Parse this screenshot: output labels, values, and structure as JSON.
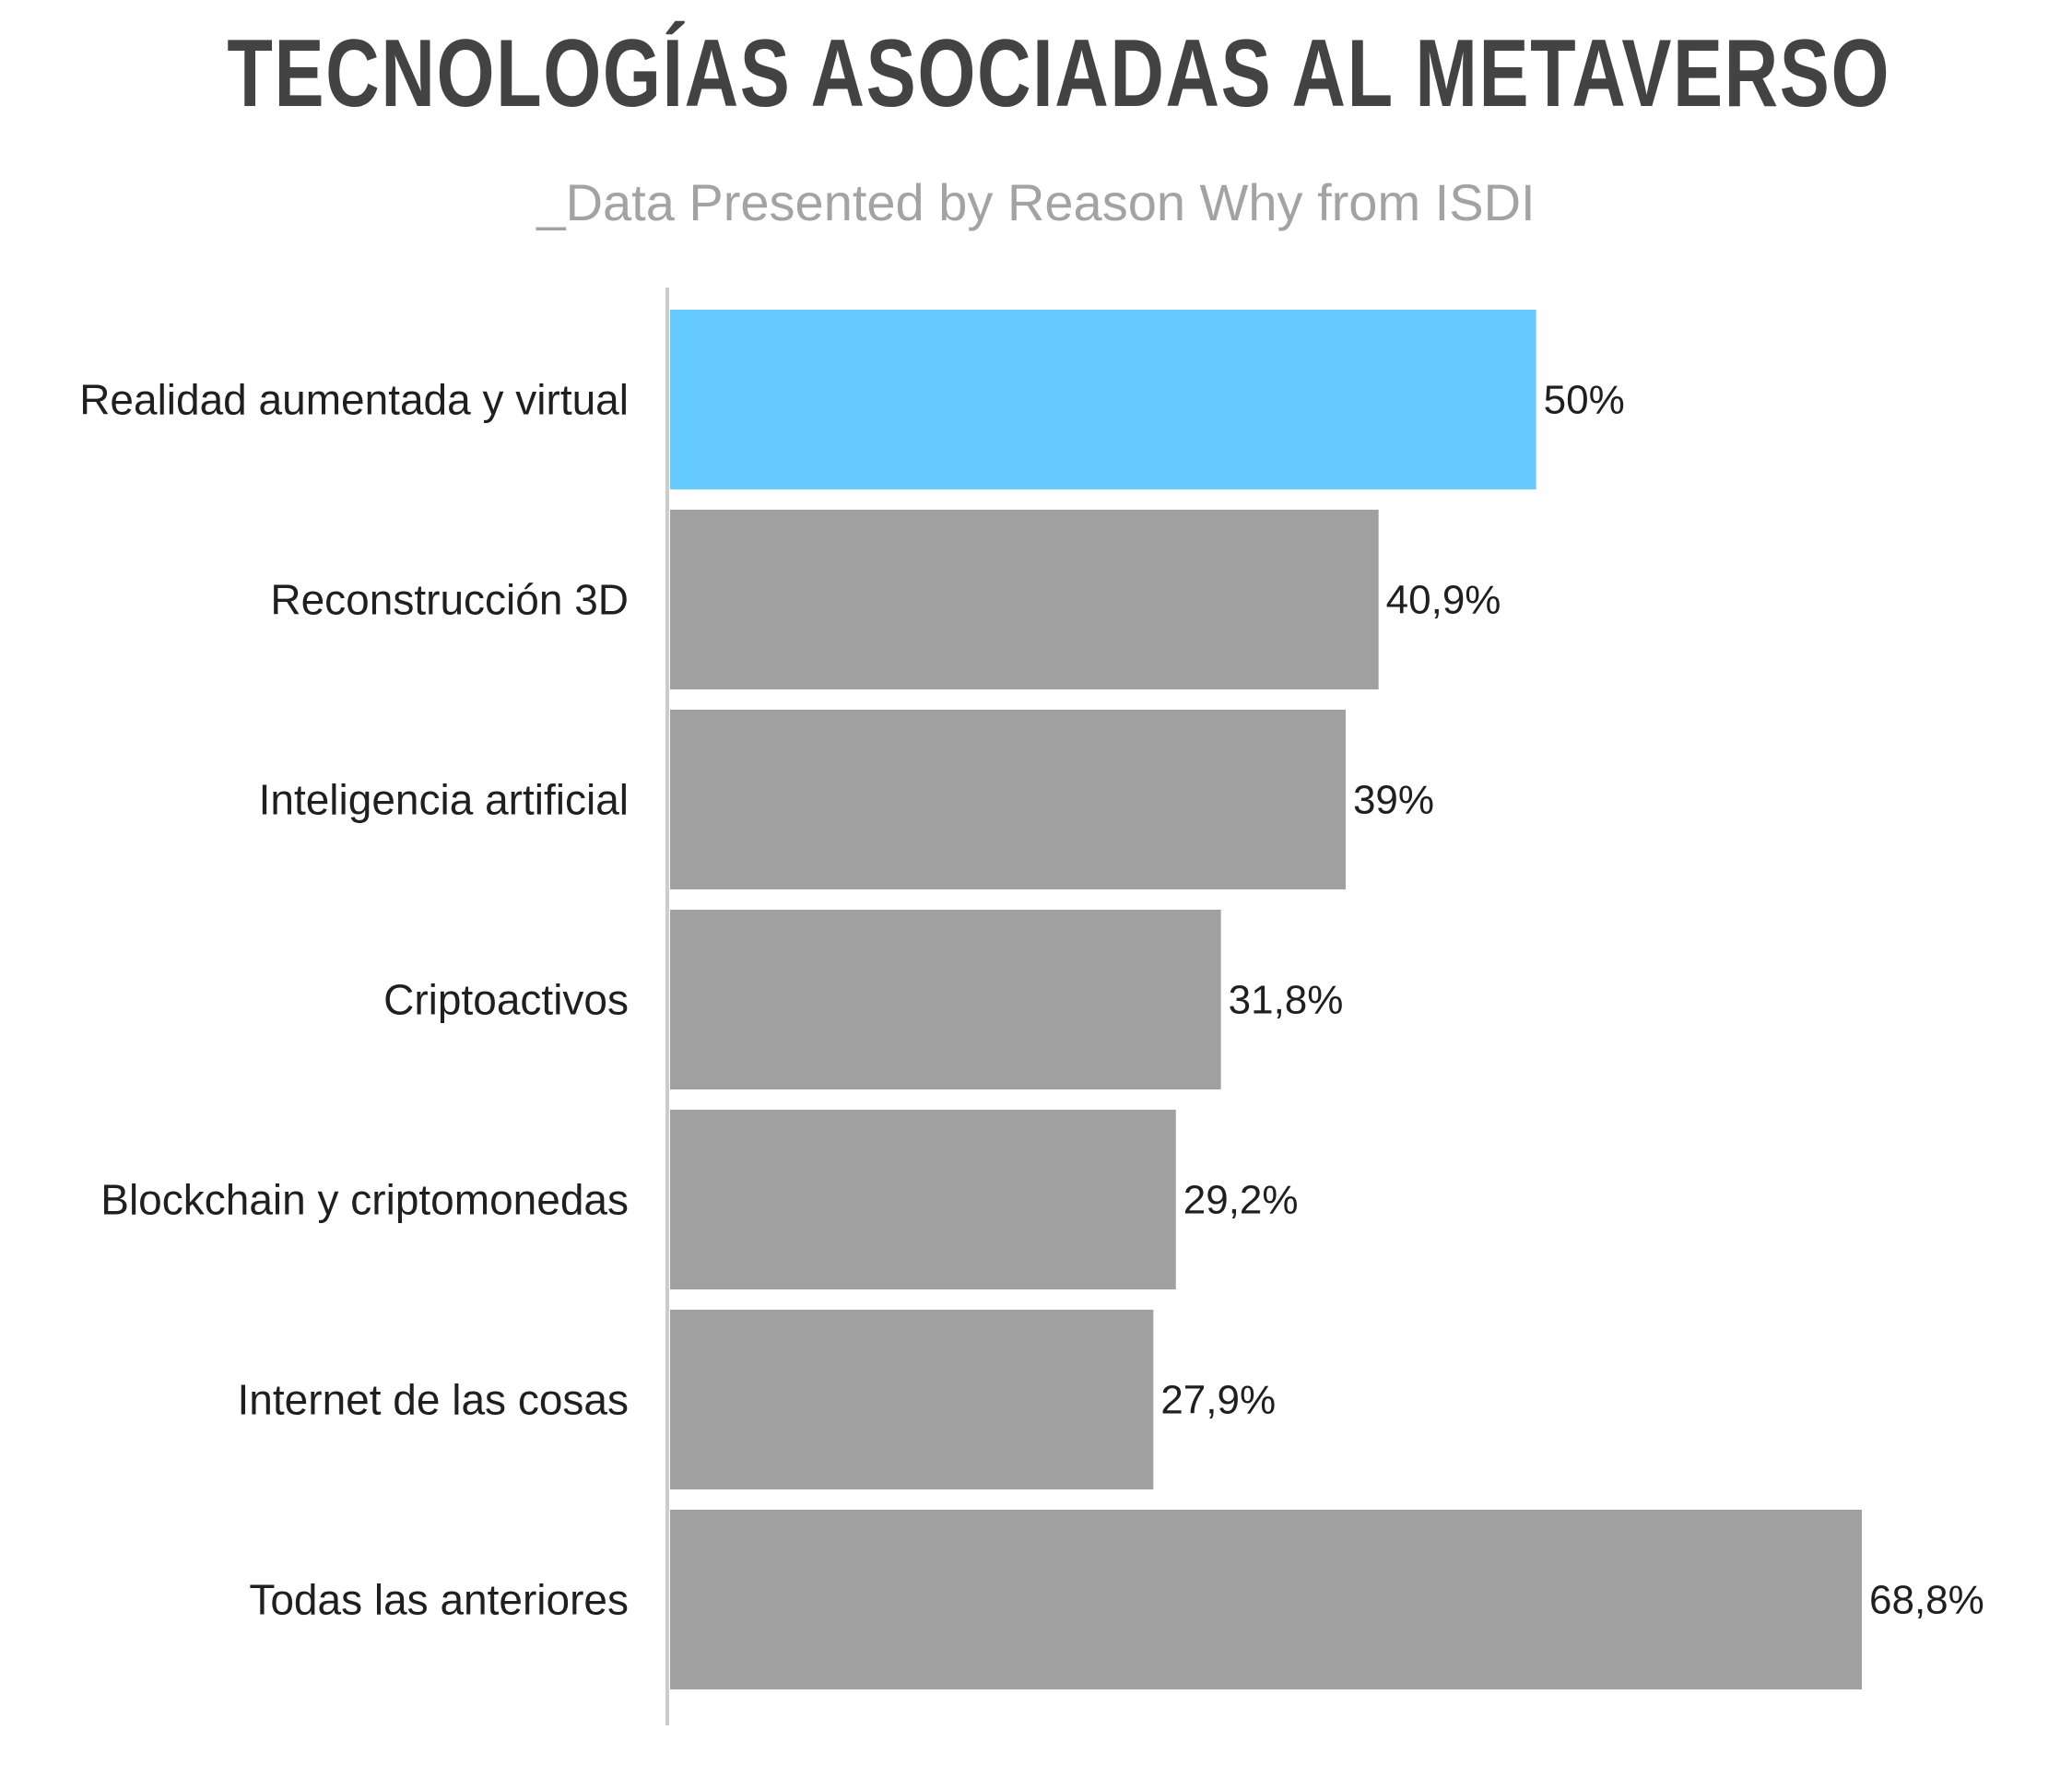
{
  "chart_data": {
    "type": "bar",
    "orientation": "horizontal",
    "title": "TECNOLOGÍAS ASOCIADAS AL METAVERSO",
    "subtitle": "_Data Presented by Reason Why from ISDI",
    "categories": [
      "Realidad aumentada y virtual",
      "Reconstrucción 3D",
      "Inteligencia artificial",
      "Criptoactivos",
      "Blockchain y criptomonedas",
      "Internet de las cosas",
      "Todas las anteriores"
    ],
    "values": [
      50,
      40.9,
      39,
      31.8,
      29.2,
      27.9,
      68.8
    ],
    "value_labels": [
      "50%",
      "40,9%",
      "39%",
      "31,8%",
      "29,2%",
      "27,9%",
      "68,8%"
    ],
    "xlim": [
      0,
      68.8
    ],
    "highlight_index": 0,
    "colors": {
      "highlight": "#66ccff",
      "bar": "#a0a0a0",
      "axis": "#cccccc",
      "title": "#434343",
      "subtitle": "#a3a3a3",
      "text": "#1f1f1f"
    },
    "grid": false,
    "legend": "none"
  }
}
